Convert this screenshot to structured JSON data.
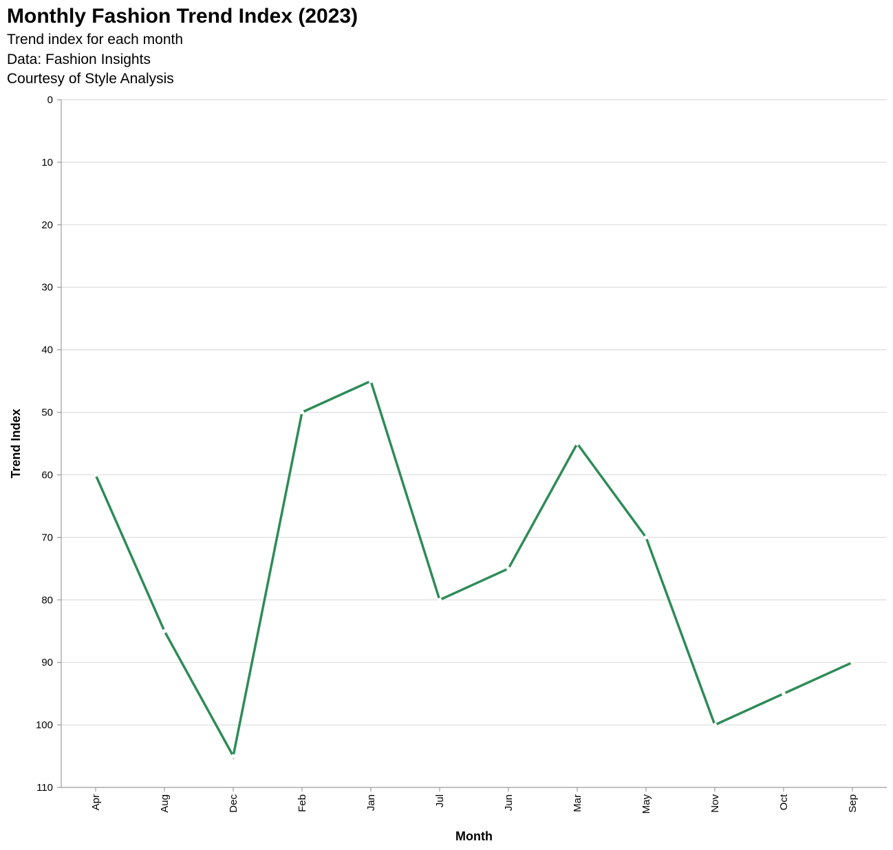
{
  "chart_data": {
    "type": "line",
    "title": "Monthly Fashion Trend Index (2023)",
    "subtitles": [
      "Trend index for each month",
      "Data: Fashion Insights",
      "Courtesy of Style Analysis"
    ],
    "xlabel": "Month",
    "ylabel": "Trend Index",
    "categories": [
      "Apr",
      "Aug",
      "Dec",
      "Feb",
      "Jan",
      "Jul",
      "Jun",
      "Mar",
      "May",
      "Nov",
      "Oct",
      "Sep"
    ],
    "values": [
      60,
      85,
      105,
      50,
      45,
      80,
      75,
      55,
      70,
      100,
      95,
      90
    ],
    "ylim": [
      0,
      110
    ],
    "y_reversed": true,
    "yticks": [
      0,
      10,
      20,
      30,
      40,
      50,
      60,
      70,
      80,
      90,
      100,
      110
    ],
    "grid": true,
    "line_color": "#2e8b57",
    "point_color": "#ffffff"
  }
}
